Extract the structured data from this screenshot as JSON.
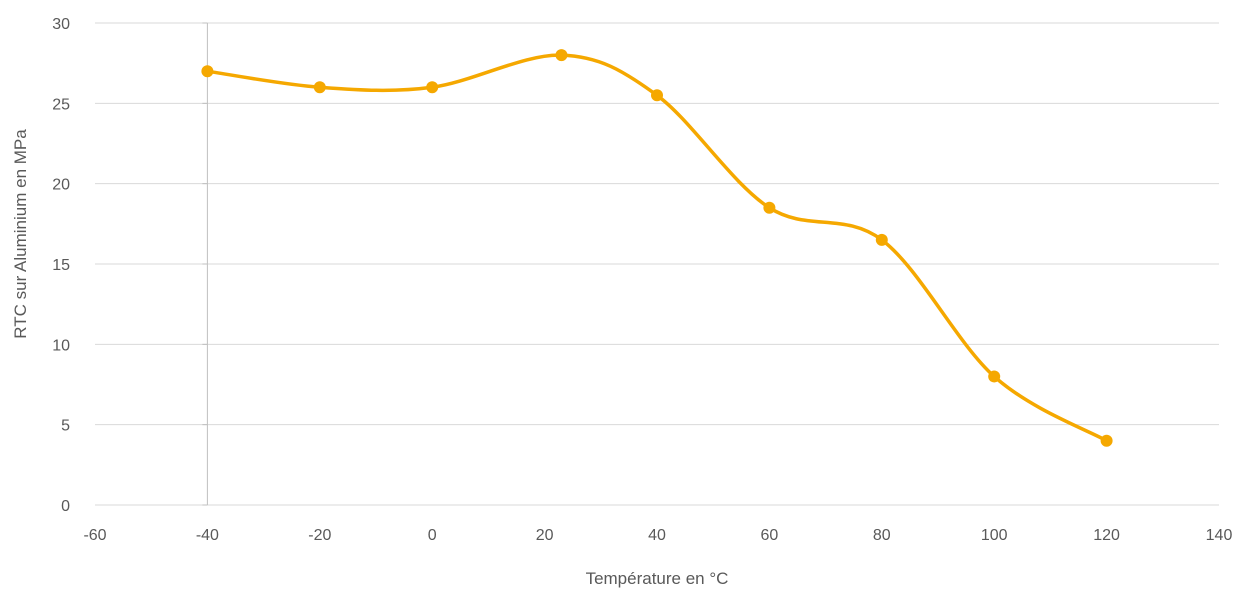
{
  "chart_data": {
    "type": "scatter",
    "title": "",
    "xlabel": "Température en °C",
    "ylabel": "RTC sur Aluminium en MPa",
    "xlim": [
      -60,
      140
    ],
    "ylim": [
      0,
      30
    ],
    "xticks": [
      -60,
      -40,
      -20,
      0,
      20,
      40,
      60,
      80,
      100,
      120,
      140
    ],
    "yticks": [
      0,
      5,
      10,
      15,
      20,
      25,
      30
    ],
    "smooth_line": true,
    "grid": true,
    "legend": "none",
    "series": [
      {
        "color": "#f5a800",
        "x": [
          -40,
          -20,
          0,
          23,
          40,
          60,
          80,
          100,
          120
        ],
        "y": [
          27,
          26,
          26,
          28,
          25.5,
          18.5,
          16.5,
          8,
          4
        ]
      }
    ]
  }
}
